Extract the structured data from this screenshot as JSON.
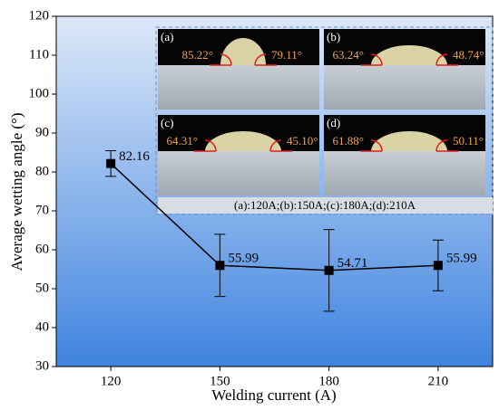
{
  "chart_data": {
    "type": "line",
    "xlabel": "Welding current (A)",
    "ylabel": "Average wetting angle (°)",
    "x": [
      120,
      150,
      180,
      210
    ],
    "values": [
      82.16,
      55.99,
      54.71,
      55.99
    ],
    "errors": [
      3.3,
      8,
      10.5,
      6.5
    ],
    "color": "#000000",
    "xlim": [
      105,
      225
    ],
    "xticks": [
      120,
      150,
      180,
      210
    ],
    "ylim": [
      30,
      120
    ],
    "yticks": [
      30,
      40,
      50,
      60,
      70,
      80,
      90,
      100,
      110,
      120
    ],
    "insets": [
      {
        "label": "(a)",
        "left_angle": "85.22°",
        "right_angle": "79.11°"
      },
      {
        "label": "(b)",
        "left_angle": "63.24°",
        "right_angle": "48.74°"
      },
      {
        "label": "(c)",
        "left_angle": "64.31°",
        "right_angle": "45.10°"
      },
      {
        "label": "(d)",
        "left_angle": "61.88°",
        "right_angle": "50.11°"
      }
    ],
    "inset_caption": "(a):120A;(b):150A;(c):180A;(d):210A"
  }
}
